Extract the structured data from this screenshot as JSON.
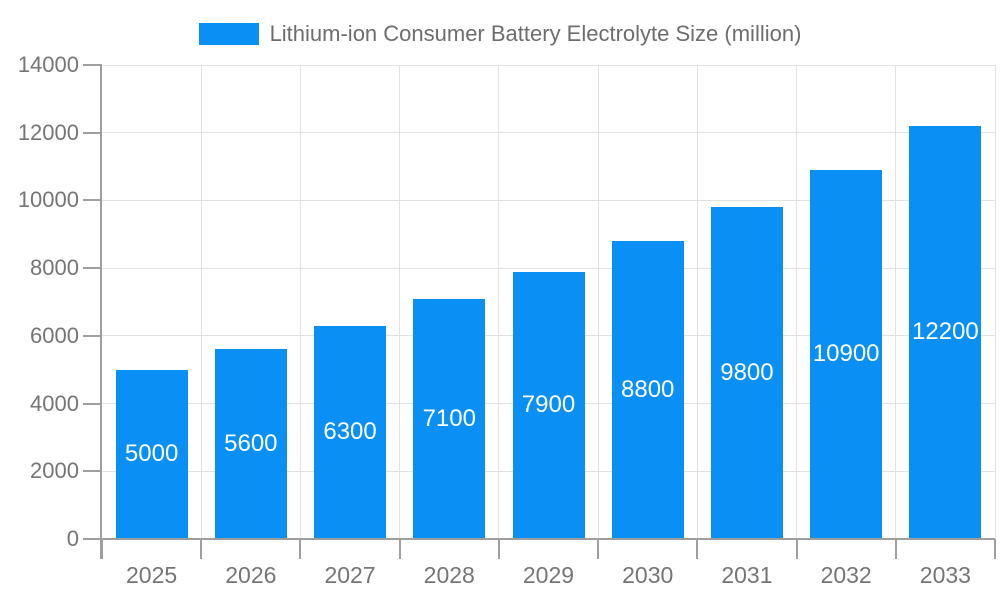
{
  "chart_data": {
    "type": "bar",
    "title": "Lithium-ion Consumer Battery Electrolyte Size (million)",
    "categories": [
      "2025",
      "2026",
      "2027",
      "2028",
      "2029",
      "2030",
      "2031",
      "2032",
      "2033"
    ],
    "values": [
      5000,
      5600,
      6300,
      7100,
      7900,
      8800,
      9800,
      10900,
      12200
    ],
    "bar_value_labels": [
      "5000",
      "5600",
      "6300",
      "7100",
      "7900",
      "8800",
      "9800",
      "10900",
      "12200"
    ],
    "xlabel": "",
    "ylabel": "",
    "ylim": [
      0,
      14000
    ],
    "yticks": [
      0,
      2000,
      4000,
      6000,
      8000,
      10000,
      12000,
      14000
    ],
    "grid": true,
    "legend_position": "top-center",
    "colors": {
      "bar": "#0a90f5",
      "bar_label": "#ffffff",
      "axis_label": "#757575",
      "title": "#6d6d6d",
      "gridline": "#e2e2e2",
      "axis_line": "#9e9e9e",
      "background": "#ffffff"
    }
  }
}
